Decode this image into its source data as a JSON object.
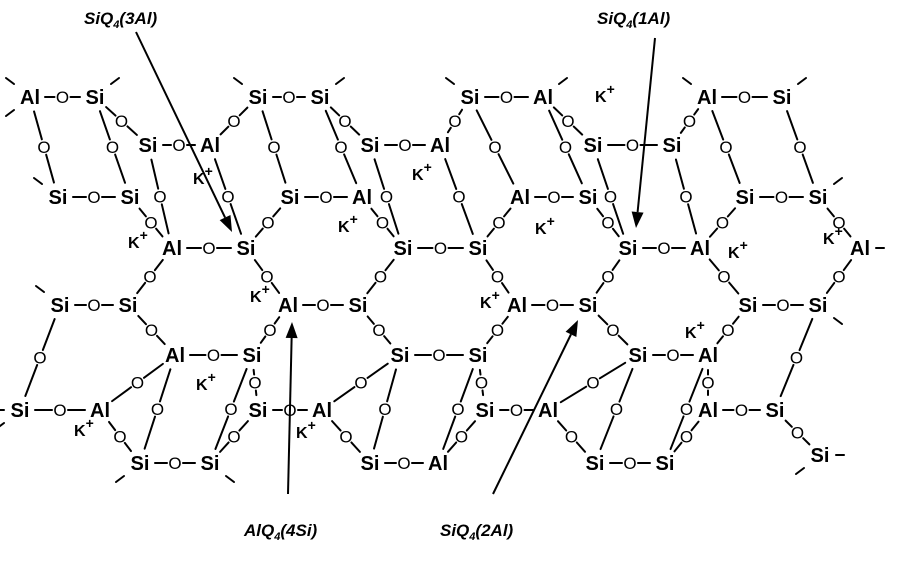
{
  "diagram": {
    "labels": {
      "siq4_3al": {
        "base": "SiQ",
        "sub": "4",
        "rest": "(3Al)"
      },
      "siq4_1al": {
        "base": "SiQ",
        "sub": "4",
        "rest": "(1Al)"
      },
      "alq4_4si": {
        "base": "AlQ",
        "sub": "4",
        "rest": "(4Si)"
      },
      "siq4_2al": {
        "base": "SiQ",
        "sub": "4",
        "rest": "(2Al)"
      }
    },
    "symbols": {
      "silicon": "Si",
      "aluminum": "Al",
      "oxygen": "O",
      "potassium": "K",
      "charge": "+"
    },
    "colors": {
      "ink": "#000000",
      "background": "#ffffff"
    }
  }
}
